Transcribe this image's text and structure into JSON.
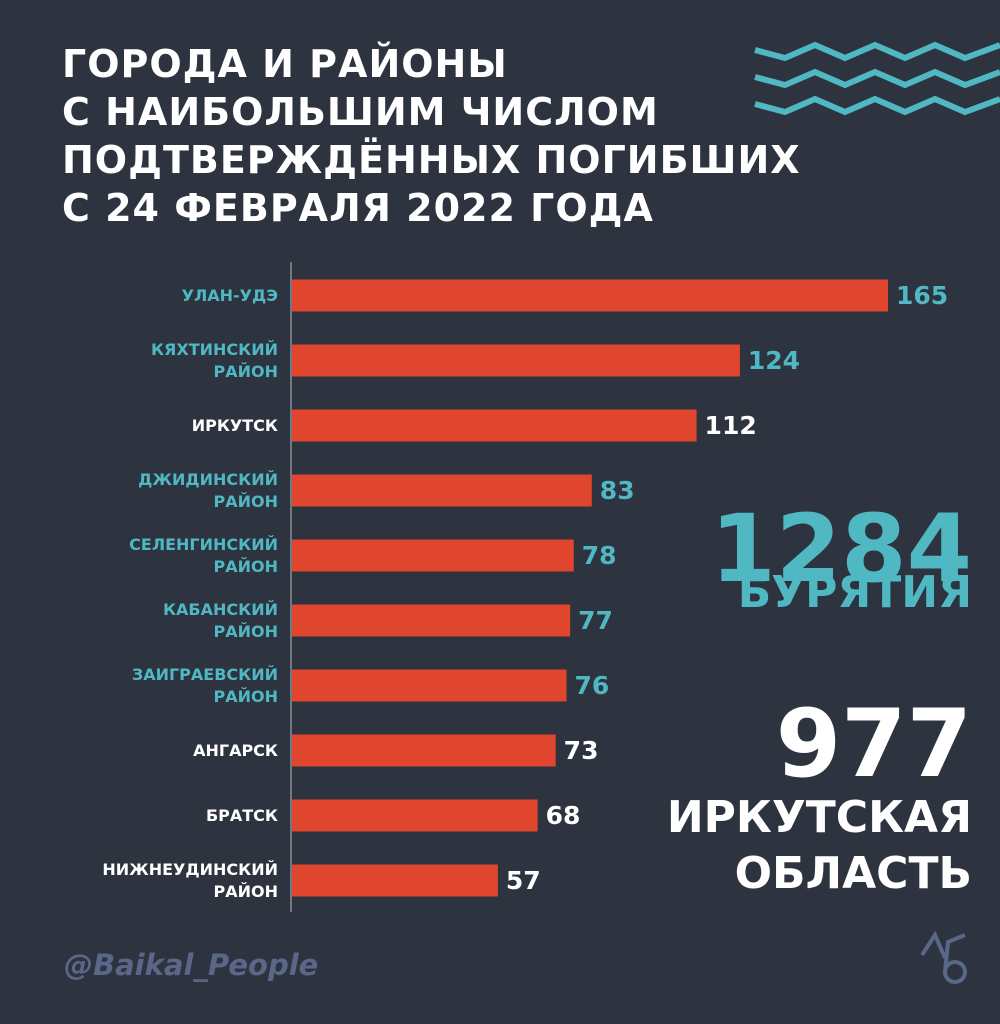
{
  "chart_data": {
    "type": "bar",
    "orientation": "horizontal",
    "title": "ГОРОДА И РАЙОНЫ\nС НАИБОЛЬШИМ ЧИСЛОМ\nПОДТВЕРЖДЁННЫХ ПОГИБШИХ\nС 24 ФЕВРАЛЯ 2022 ГОДА",
    "categories": [
      "УЛАН-УДЭ",
      "КЯХТИНСКИЙ РАЙОН",
      "ИРКУТСК",
      "ДЖИДИНСКИЙ РАЙОН",
      "СЕЛЕНГИНСКИЙ РАЙОН",
      "КАБАНСКИЙ РАЙОН",
      "ЗАИГРАЕВСКИЙ РАЙОН",
      "АНГАРСК",
      "БРАТСК",
      "НИЖНЕУДИНСКИЙ РАЙОН"
    ],
    "values": [
      165,
      124,
      112,
      83,
      78,
      77,
      76,
      73,
      68,
      57
    ],
    "color": "#e0452d",
    "label_colors": [
      "#4fb8c2",
      "#4fb8c2",
      "#ffffff",
      "#4fb8c2",
      "#4fb8c2",
      "#4fb8c2",
      "#4fb8c2",
      "#ffffff",
      "#ffffff",
      "#ffffff"
    ],
    "xlim": [
      0,
      165
    ],
    "totals": [
      {
        "value": 1284,
        "label": "БУРЯТИЯ",
        "color": "#4fb8c2"
      },
      {
        "value": 977,
        "label": "ИРКУТСКАЯ\nОБЛАСТЬ",
        "color": "#ffffff"
      }
    ],
    "source": "@Baikal_People"
  }
}
